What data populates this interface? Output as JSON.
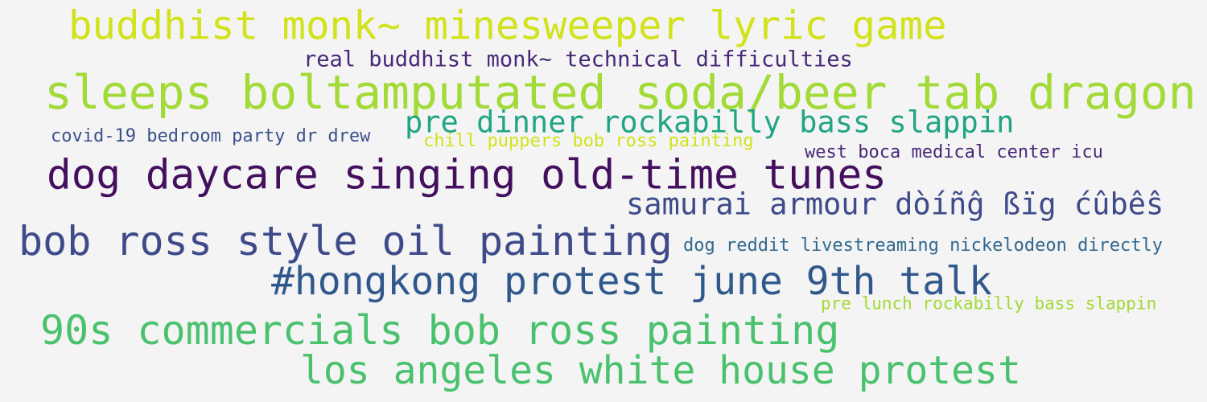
{
  "word_cloud": {
    "words": [
      {
        "text": "buddhist monk~ minesweeper lyric game",
        "color": "#d2e21b"
      },
      {
        "text": "real buddhist monk~ technical difficulties",
        "color": "#482878"
      },
      {
        "text": "sleeps boltamputated soda/beer tab dragon",
        "color": "#a2da37"
      },
      {
        "text": "pre dinner rockabilly bass slappin",
        "color": "#21a585"
      },
      {
        "text": "covid-19 bedroom party dr drew",
        "color": "#3b528b"
      },
      {
        "text": "chill puppers bob ross painting",
        "color": "#d2e21b"
      },
      {
        "text": "west boca medical center icu",
        "color": "#482878"
      },
      {
        "text": "dog daycare singing old-time tunes",
        "color": "#440f5e"
      },
      {
        "text": "samurai armour dòíñĝ ßïg ćûbêŝ",
        "color": "#3e4a89"
      },
      {
        "text": "bob ross style oil painting",
        "color": "#3e4a89"
      },
      {
        "text": "dog reddit livestreaming nickelodeon directly",
        "color": "#31688e"
      },
      {
        "text": "#hongkong protest june 9th talk",
        "color": "#31588c"
      },
      {
        "text": "pre lunch rockabilly bass slappin",
        "color": "#a2da37"
      },
      {
        "text": "90s commercials bob ross painting",
        "color": "#4ac16d"
      },
      {
        "text": "los angeles white house protest",
        "color": "#4ac16d"
      }
    ]
  }
}
